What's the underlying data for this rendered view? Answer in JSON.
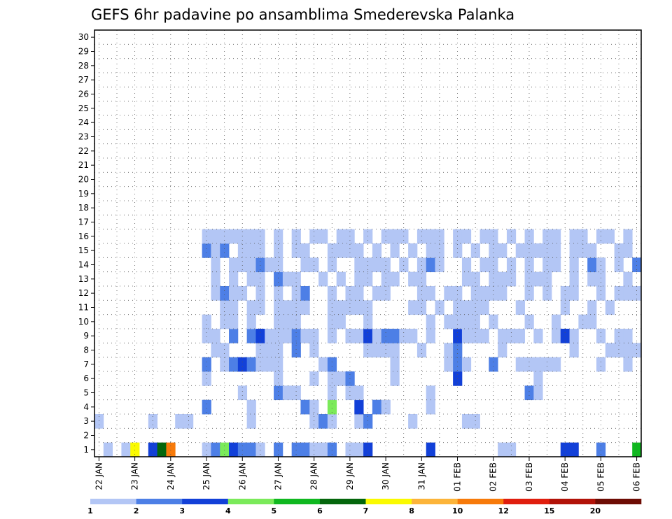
{
  "chart_data": {
    "type": "heatmap",
    "title": "GEFS 6hr padavine po ansamblima Smederevska Palanka",
    "x_ticks": [
      "22 JAN",
      "23 JAN",
      "24 JAN",
      "25 JAN",
      "26 JAN",
      "27 JAN",
      "28 JAN",
      "29 JAN",
      "30 JAN",
      "31 JAN",
      "01 FEB",
      "02 FEB",
      "03 FEB",
      "04 FEB",
      "05 FEB",
      "06 FEB"
    ],
    "y_ticks": [
      1,
      2,
      3,
      4,
      5,
      6,
      7,
      8,
      9,
      10,
      11,
      12,
      13,
      14,
      15,
      16,
      17,
      18,
      19,
      20,
      21,
      22,
      23,
      24,
      25,
      26,
      27,
      28,
      29,
      30
    ],
    "x_range_days": [
      0,
      15
    ],
    "y_range": [
      0,
      30
    ],
    "grid": "dotted",
    "colorbar": {
      "levels": [
        "1",
        "2",
        "3",
        "4",
        "5",
        "6",
        "7",
        "8",
        "10",
        "12",
        "15",
        "20"
      ],
      "colors": [
        "#b3c6f5",
        "#4d7fe6",
        "#1240d8",
        "#7bea5a",
        "#10b820",
        "#04660c",
        "#fafa00",
        "#fcb43a",
        "#f77a0a",
        "#e01e0e",
        "#b21208",
        "#6e0c04"
      ]
    },
    "cells": [
      [
        1,
        1,
        1.5
      ],
      [
        1,
        3,
        1.75
      ],
      [
        1,
        4,
        7.5
      ],
      [
        1,
        6,
        3
      ],
      [
        1,
        7,
        6
      ],
      [
        1,
        8,
        11
      ],
      [
        1,
        12,
        1
      ],
      [
        1,
        13,
        2
      ],
      [
        1,
        14,
        4
      ],
      [
        1,
        15,
        3
      ],
      [
        1,
        16,
        2
      ],
      [
        1,
        17,
        2
      ],
      [
        1,
        18,
        1
      ],
      [
        1,
        20,
        2
      ],
      [
        1,
        22,
        2
      ],
      [
        1,
        23,
        2
      ],
      [
        1,
        24,
        1
      ],
      [
        1,
        25,
        1
      ],
      [
        1,
        26,
        2
      ],
      [
        1,
        28,
        1
      ],
      [
        1,
        29,
        1
      ],
      [
        1,
        30,
        3
      ],
      [
        1,
        37,
        3
      ],
      [
        1,
        45,
        1
      ],
      [
        1,
        46,
        1
      ],
      [
        1,
        52,
        3
      ],
      [
        1,
        53,
        3
      ],
      [
        1,
        56,
        2
      ],
      [
        1,
        60,
        5
      ],
      [
        3,
        0,
        1
      ],
      [
        3,
        6,
        1
      ],
      [
        3,
        9,
        1
      ],
      [
        3,
        10,
        1.5
      ],
      [
        3,
        17,
        1
      ],
      [
        3,
        24,
        1
      ],
      [
        3,
        25,
        2
      ],
      [
        3,
        26,
        1.5
      ],
      [
        3,
        29,
        1
      ],
      [
        3,
        30,
        2
      ],
      [
        3,
        35,
        1
      ],
      [
        3,
        41,
        1
      ],
      [
        3,
        42,
        1
      ],
      [
        4,
        12,
        2
      ],
      [
        4,
        17,
        1
      ],
      [
        4,
        23,
        2
      ],
      [
        4,
        24,
        1
      ],
      [
        4,
        26,
        4
      ],
      [
        4,
        29,
        3
      ],
      [
        4,
        31,
        2
      ],
      [
        4,
        32,
        1
      ],
      [
        4,
        37,
        1
      ],
      [
        5,
        16,
        1
      ],
      [
        5,
        20,
        2
      ],
      [
        5,
        21,
        1
      ],
      [
        5,
        22,
        1
      ],
      [
        5,
        26,
        1
      ],
      [
        5,
        28,
        1
      ],
      [
        5,
        29,
        1
      ],
      [
        5,
        37,
        1
      ],
      [
        5,
        48,
        2
      ],
      [
        5,
        49,
        1
      ],
      [
        6,
        12,
        1
      ],
      [
        6,
        20,
        1
      ],
      [
        6,
        24,
        1
      ],
      [
        6,
        26,
        1
      ],
      [
        6,
        27,
        1
      ],
      [
        6,
        28,
        2
      ],
      [
        6,
        33,
        1
      ],
      [
        6,
        40,
        3
      ],
      [
        6,
        49,
        1
      ],
      [
        7,
        12,
        2
      ],
      [
        7,
        14,
        1
      ],
      [
        7,
        15,
        2
      ],
      [
        7,
        16,
        3
      ],
      [
        7,
        17,
        2
      ],
      [
        7,
        18,
        1
      ],
      [
        7,
        19,
        1
      ],
      [
        7,
        20,
        1
      ],
      [
        7,
        25,
        1
      ],
      [
        7,
        26,
        2
      ],
      [
        7,
        33,
        1
      ],
      [
        7,
        39,
        1
      ],
      [
        7,
        40,
        2
      ],
      [
        7,
        41,
        1
      ],
      [
        7,
        44,
        2
      ],
      [
        7,
        47,
        1
      ],
      [
        7,
        48,
        1
      ],
      [
        7,
        49,
        1
      ],
      [
        7,
        50,
        1
      ],
      [
        7,
        51,
        1
      ],
      [
        7,
        56,
        1
      ],
      [
        7,
        59,
        1
      ],
      [
        8,
        13,
        1.5
      ],
      [
        8,
        14,
        1
      ],
      [
        8,
        18,
        1
      ],
      [
        8,
        19,
        1
      ],
      [
        8,
        20,
        1
      ],
      [
        8,
        22,
        2
      ],
      [
        8,
        24,
        1
      ],
      [
        8,
        30,
        1
      ],
      [
        8,
        31,
        1
      ],
      [
        8,
        32,
        1
      ],
      [
        8,
        33,
        1
      ],
      [
        8,
        36,
        1
      ],
      [
        8,
        39,
        1
      ],
      [
        8,
        40,
        2
      ],
      [
        8,
        45,
        1
      ],
      [
        8,
        53,
        1
      ],
      [
        8,
        57,
        1
      ],
      [
        8,
        58,
        1
      ],
      [
        8,
        59,
        1
      ],
      [
        8,
        60,
        1
      ],
      [
        9,
        12,
        1
      ],
      [
        9,
        13,
        1
      ],
      [
        9,
        15,
        2
      ],
      [
        9,
        17,
        2
      ],
      [
        9,
        18,
        3
      ],
      [
        9,
        19,
        1
      ],
      [
        9,
        20,
        1
      ],
      [
        9,
        21,
        1
      ],
      [
        9,
        22,
        2
      ],
      [
        9,
        23,
        1
      ],
      [
        9,
        24,
        1
      ],
      [
        9,
        26,
        1
      ],
      [
        9,
        28,
        1
      ],
      [
        9,
        29,
        1
      ],
      [
        9,
        30,
        3
      ],
      [
        9,
        31,
        1
      ],
      [
        9,
        32,
        2
      ],
      [
        9,
        33,
        2
      ],
      [
        9,
        34,
        1
      ],
      [
        9,
        35,
        1
      ],
      [
        9,
        37,
        1
      ],
      [
        9,
        40,
        3
      ],
      [
        9,
        41,
        1
      ],
      [
        9,
        42,
        1
      ],
      [
        9,
        43,
        1
      ],
      [
        9,
        45,
        1
      ],
      [
        9,
        46,
        1
      ],
      [
        9,
        47,
        1
      ],
      [
        9,
        49,
        1
      ],
      [
        9,
        51,
        1
      ],
      [
        9,
        52,
        3
      ],
      [
        9,
        53,
        1
      ],
      [
        9,
        56,
        1
      ],
      [
        9,
        58,
        1
      ],
      [
        9,
        59,
        1
      ],
      [
        10,
        12,
        1
      ],
      [
        10,
        14,
        1
      ],
      [
        10,
        15,
        1
      ],
      [
        10,
        17,
        1
      ],
      [
        10,
        20,
        1
      ],
      [
        10,
        21,
        1
      ],
      [
        10,
        22,
        1
      ],
      [
        10,
        26,
        1
      ],
      [
        10,
        27,
        1
      ],
      [
        10,
        30,
        1
      ],
      [
        10,
        37,
        1
      ],
      [
        10,
        39,
        1
      ],
      [
        10,
        40,
        1
      ],
      [
        10,
        41,
        1
      ],
      [
        10,
        42,
        1
      ],
      [
        10,
        44,
        1
      ],
      [
        10,
        48,
        1
      ],
      [
        10,
        51,
        1
      ],
      [
        10,
        54,
        1
      ],
      [
        10,
        55,
        1
      ],
      [
        11,
        14,
        1
      ],
      [
        11,
        15,
        1
      ],
      [
        11,
        17,
        1
      ],
      [
        11,
        18,
        1
      ],
      [
        11,
        20,
        1
      ],
      [
        11,
        21,
        1
      ],
      [
        11,
        22,
        1
      ],
      [
        11,
        23,
        1
      ],
      [
        11,
        26,
        1
      ],
      [
        11,
        27,
        1
      ],
      [
        11,
        28,
        1
      ],
      [
        11,
        29,
        1
      ],
      [
        11,
        30,
        1
      ],
      [
        11,
        35,
        1
      ],
      [
        11,
        36,
        1
      ],
      [
        11,
        38,
        1
      ],
      [
        11,
        40,
        1
      ],
      [
        11,
        41,
        1
      ],
      [
        11,
        42,
        1
      ],
      [
        11,
        43,
        1
      ],
      [
        11,
        47,
        1
      ],
      [
        11,
        52,
        1
      ],
      [
        11,
        55,
        1
      ],
      [
        11,
        57,
        1
      ],
      [
        12,
        13,
        1
      ],
      [
        12,
        14,
        2
      ],
      [
        12,
        15,
        1
      ],
      [
        12,
        16,
        1
      ],
      [
        12,
        18,
        1
      ],
      [
        12,
        20,
        1
      ],
      [
        12,
        22,
        1
      ],
      [
        12,
        23,
        2
      ],
      [
        12,
        26,
        1
      ],
      [
        12,
        28,
        1
      ],
      [
        12,
        29,
        1
      ],
      [
        12,
        31,
        1
      ],
      [
        12,
        32,
        1
      ],
      [
        12,
        36,
        1
      ],
      [
        12,
        37,
        1
      ],
      [
        12,
        39,
        1
      ],
      [
        12,
        40,
        1
      ],
      [
        12,
        42,
        1
      ],
      [
        12,
        43,
        1
      ],
      [
        12,
        44,
        1
      ],
      [
        12,
        45,
        1
      ],
      [
        12,
        48,
        1
      ],
      [
        12,
        50,
        1
      ],
      [
        12,
        52,
        1
      ],
      [
        12,
        53,
        1
      ],
      [
        12,
        56,
        1
      ],
      [
        12,
        58,
        1
      ],
      [
        12,
        59,
        1
      ],
      [
        12,
        60,
        1
      ],
      [
        13,
        13,
        1
      ],
      [
        13,
        15,
        1
      ],
      [
        13,
        17,
        1
      ],
      [
        13,
        18,
        1
      ],
      [
        13,
        20,
        2
      ],
      [
        13,
        21,
        1
      ],
      [
        13,
        22,
        1
      ],
      [
        13,
        25,
        1
      ],
      [
        13,
        27,
        1
      ],
      [
        13,
        29,
        1
      ],
      [
        13,
        30,
        1
      ],
      [
        13,
        32,
        1
      ],
      [
        13,
        33,
        1
      ],
      [
        13,
        35,
        1
      ],
      [
        13,
        36,
        1
      ],
      [
        13,
        41,
        1
      ],
      [
        13,
        42,
        1
      ],
      [
        13,
        44,
        1
      ],
      [
        13,
        45,
        1
      ],
      [
        13,
        46,
        1
      ],
      [
        13,
        48,
        1
      ],
      [
        13,
        49,
        1
      ],
      [
        13,
        50,
        1
      ],
      [
        13,
        53,
        1
      ],
      [
        13,
        55,
        1
      ],
      [
        13,
        56,
        1
      ],
      [
        13,
        59,
        1
      ],
      [
        14,
        13,
        1
      ],
      [
        14,
        15,
        1
      ],
      [
        14,
        16,
        1
      ],
      [
        14,
        17,
        1
      ],
      [
        14,
        18,
        2
      ],
      [
        14,
        19,
        1
      ],
      [
        14,
        20,
        1
      ],
      [
        14,
        23,
        1
      ],
      [
        14,
        24,
        1
      ],
      [
        14,
        26,
        1
      ],
      [
        14,
        29,
        1
      ],
      [
        14,
        30,
        1
      ],
      [
        14,
        31,
        1
      ],
      [
        14,
        32,
        1
      ],
      [
        14,
        34,
        1
      ],
      [
        14,
        36,
        1
      ],
      [
        14,
        37,
        2
      ],
      [
        14,
        38,
        1
      ],
      [
        14,
        41,
        1
      ],
      [
        14,
        43,
        1
      ],
      [
        14,
        44,
        1
      ],
      [
        14,
        46,
        1
      ],
      [
        14,
        48,
        1
      ],
      [
        14,
        50,
        1
      ],
      [
        14,
        51,
        1
      ],
      [
        14,
        53,
        1
      ],
      [
        14,
        55,
        2
      ],
      [
        14,
        56,
        1
      ],
      [
        14,
        58,
        1
      ],
      [
        14,
        60,
        2
      ],
      [
        15,
        12,
        2
      ],
      [
        15,
        13,
        1
      ],
      [
        15,
        14,
        2
      ],
      [
        15,
        16,
        1
      ],
      [
        15,
        17,
        1
      ],
      [
        15,
        18,
        1
      ],
      [
        15,
        20,
        1
      ],
      [
        15,
        22,
        1
      ],
      [
        15,
        23,
        1
      ],
      [
        15,
        26,
        1
      ],
      [
        15,
        27,
        1
      ],
      [
        15,
        28,
        1
      ],
      [
        15,
        29,
        1
      ],
      [
        15,
        31,
        1
      ],
      [
        15,
        33,
        1
      ],
      [
        15,
        35,
        1
      ],
      [
        15,
        37,
        1
      ],
      [
        15,
        38,
        1
      ],
      [
        15,
        40,
        1
      ],
      [
        15,
        42,
        1
      ],
      [
        15,
        44,
        1
      ],
      [
        15,
        45,
        1
      ],
      [
        15,
        47,
        1
      ],
      [
        15,
        48,
        1
      ],
      [
        15,
        49,
        1
      ],
      [
        15,
        50,
        1
      ],
      [
        15,
        51,
        1
      ],
      [
        15,
        53,
        1
      ],
      [
        15,
        54,
        1
      ],
      [
        15,
        55,
        1
      ],
      [
        15,
        58,
        1
      ],
      [
        15,
        59,
        1
      ],
      [
        16,
        12,
        1
      ],
      [
        16,
        13,
        1
      ],
      [
        16,
        14,
        1
      ],
      [
        16,
        15,
        1
      ],
      [
        16,
        16,
        1
      ],
      [
        16,
        17,
        1
      ],
      [
        16,
        18,
        1
      ],
      [
        16,
        20,
        1
      ],
      [
        16,
        22,
        1
      ],
      [
        16,
        24,
        1
      ],
      [
        16,
        25,
        1
      ],
      [
        16,
        27,
        1
      ],
      [
        16,
        28,
        1
      ],
      [
        16,
        30,
        1
      ],
      [
        16,
        32,
        1
      ],
      [
        16,
        33,
        1
      ],
      [
        16,
        34,
        1
      ],
      [
        16,
        36,
        1
      ],
      [
        16,
        37,
        1
      ],
      [
        16,
        38,
        1
      ],
      [
        16,
        40,
        1
      ],
      [
        16,
        41,
        1
      ],
      [
        16,
        43,
        1
      ],
      [
        16,
        44,
        1
      ],
      [
        16,
        46,
        1
      ],
      [
        16,
        48,
        1
      ],
      [
        16,
        50,
        1
      ],
      [
        16,
        51,
        1
      ],
      [
        16,
        53,
        1
      ],
      [
        16,
        54,
        1
      ],
      [
        16,
        56,
        1
      ],
      [
        16,
        57,
        1
      ],
      [
        16,
        59,
        1
      ]
    ]
  }
}
